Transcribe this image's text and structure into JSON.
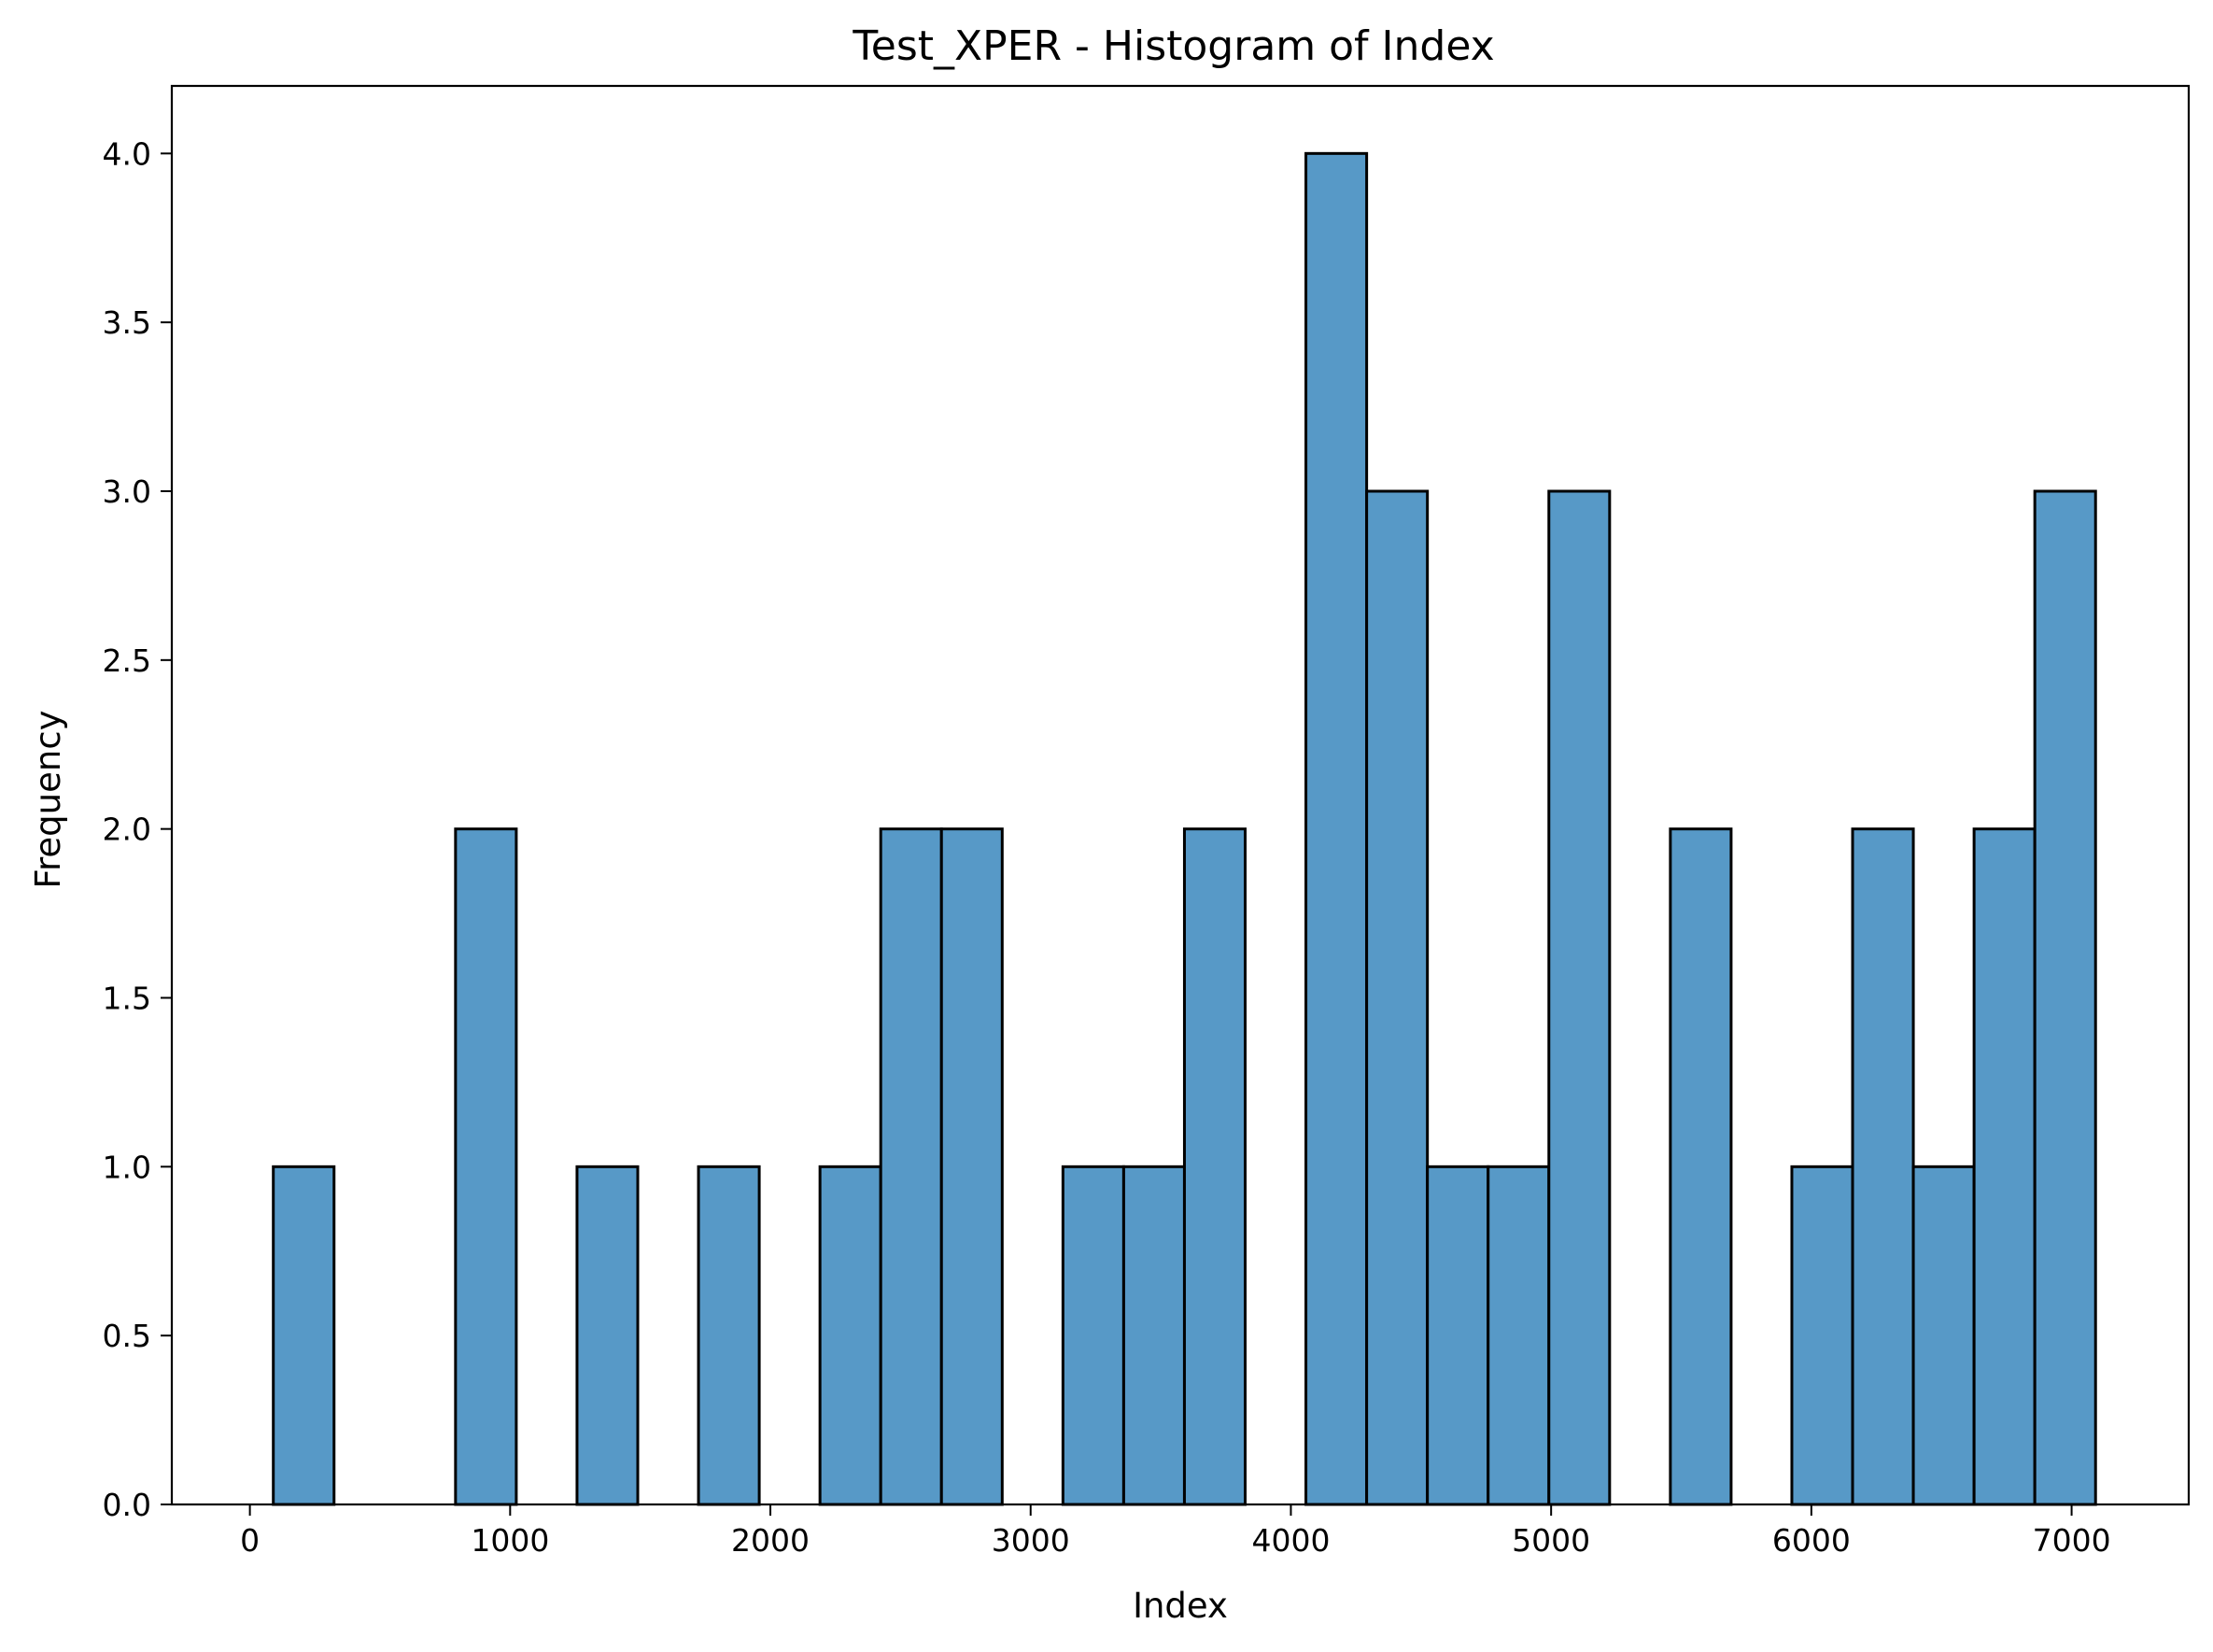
{
  "chart_data": {
    "type": "bar",
    "subtype": "histogram",
    "title": "Test_XPER - Histogram of Index",
    "xlabel": "Index",
    "ylabel": "Frequency",
    "xlim": [
      -300,
      7450
    ],
    "ylim": [
      0,
      4.2
    ],
    "x_ticks": [
      0,
      1000,
      2000,
      3000,
      4000,
      5000,
      6000,
      7000
    ],
    "x_tick_labels": [
      "0",
      "1000",
      "2000",
      "3000",
      "4000",
      "5000",
      "6000",
      "7000"
    ],
    "y_ticks": [
      0,
      0.5,
      1,
      1.5,
      2,
      2.5,
      3,
      3.5,
      4
    ],
    "y_tick_labels": [
      "0.0",
      "0.5",
      "1.0",
      "1.5",
      "2.0",
      "2.5",
      "3.0",
      "3.5",
      "4.0"
    ],
    "bin_start": 90,
    "bin_width": 233.4,
    "bin_counts": [
      1,
      0,
      0,
      2,
      0,
      1,
      0,
      1,
      0,
      1,
      2,
      2,
      0,
      1,
      1,
      2,
      0,
      4,
      3,
      1,
      1,
      3,
      0,
      2,
      0,
      1,
      2,
      1,
      2,
      3
    ],
    "bar_color": "#5799c7",
    "edge_color": "#000000",
    "grid": false
  }
}
